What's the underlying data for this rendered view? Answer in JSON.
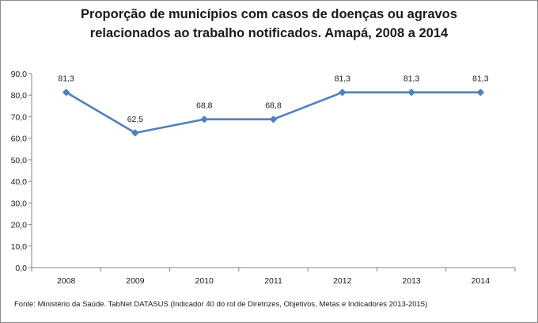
{
  "chart_data": {
    "type": "line",
    "title_lines": [
      "Proporção de municípios com casos de doenças ou agravos",
      "relacionados ao trabalho notificados. Amapá, 2008 a 2014"
    ],
    "categories": [
      "2008",
      "2009",
      "2010",
      "2011",
      "2012",
      "2013",
      "2014"
    ],
    "series": [
      {
        "name": "Proporção de municípios",
        "values": [
          81.3,
          62.5,
          68.8,
          68.8,
          81.3,
          81.3,
          81.3
        ],
        "labels": [
          "81,3",
          "62,5",
          "68,8",
          "68,8",
          "81,3",
          "81,3",
          "81,3"
        ]
      }
    ],
    "ylim": [
      0,
      90
    ],
    "yticks": [
      0,
      10,
      20,
      30,
      40,
      50,
      60,
      70,
      80,
      90
    ],
    "ytick_labels": [
      "0,0",
      "10,0",
      "20,0",
      "30,0",
      "40,0",
      "50,0",
      "60,0",
      "70,0",
      "80,0",
      "90,0"
    ],
    "xlabel": "",
    "ylabel": "",
    "grid": false,
    "line_color": "#4f81bd",
    "source": "Fonte: Ministério da Saúde. TabNet DATASUS (Indicador 40 do rol de Diretrizes, Objetivos, Metas e Indicadores 2013-2015)"
  }
}
